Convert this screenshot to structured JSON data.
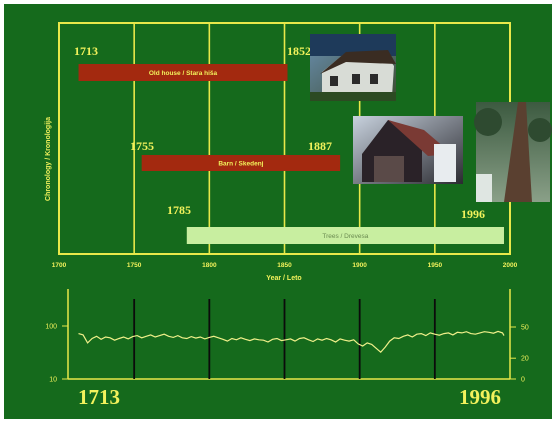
{
  "colors": {
    "background": "#156a1c",
    "frame": "#e8e84a",
    "bar_dark_red": "#a3290f",
    "bar_light_green": "#c8eea0",
    "label_yellow": "#f2f25c",
    "trace": "#f0f08a"
  },
  "chart_data": [
    {
      "type": "bar",
      "orientation": "horizontal",
      "ylabel": "Chronology / Kronologija",
      "xlabel": "Year / Leto",
      "xlim": [
        1700,
        2000
      ],
      "x_ticks": [
        "1700",
        "1750",
        "1800",
        "1850",
        "1900",
        "1950",
        "2000"
      ],
      "grid": true,
      "bars": [
        {
          "label": "Old house / Stara hiša",
          "start": 1713,
          "end": 1852,
          "start_label": "1713",
          "end_label": "1852",
          "color": "#a3290f"
        },
        {
          "label": "Barn / Skedenj",
          "start": 1755,
          "end": 1887,
          "start_label": "1755",
          "end_label": "1887",
          "color": "#a3290f"
        },
        {
          "label": "Trees / Drevesa",
          "start": 1785,
          "end": 1996,
          "start_label": "1785",
          "end_label": "1996",
          "color": "#c8eea0"
        }
      ],
      "photos": [
        "house-photo",
        "barn-photo",
        "tree-photo"
      ]
    },
    {
      "type": "line",
      "xlim": [
        1700,
        2000
      ],
      "y_left_ticks": [
        "10",
        "100"
      ],
      "y_right_ticks": [
        "0",
        "20",
        "50"
      ],
      "y_left_log": true,
      "grid": true,
      "series": [
        {
          "x": [
            1713,
            1716,
            1719,
            1722,
            1725,
            1728,
            1731,
            1734,
            1737,
            1740,
            1743,
            1746,
            1749,
            1752,
            1755,
            1758,
            1761,
            1764,
            1767,
            1770,
            1773,
            1776,
            1779,
            1782,
            1785,
            1788,
            1791,
            1794,
            1797,
            1800,
            1803,
            1806,
            1809,
            1812,
            1815,
            1818,
            1821,
            1824,
            1827,
            1830,
            1833,
            1836,
            1839,
            1842,
            1845,
            1848,
            1851,
            1854,
            1857,
            1860,
            1863,
            1866,
            1869,
            1872,
            1875,
            1878,
            1881,
            1884,
            1887,
            1890,
            1893,
            1896,
            1899,
            1902,
            1905,
            1908,
            1911,
            1914,
            1917,
            1920,
            1923,
            1926,
            1929,
            1932,
            1935,
            1938,
            1941,
            1944,
            1947,
            1950,
            1953,
            1956,
            1959,
            1962,
            1965,
            1968,
            1971,
            1974,
            1977,
            1980,
            1983,
            1986,
            1989,
            1992,
            1995,
            1996
          ],
          "values": [
            72,
            68,
            48,
            58,
            64,
            56,
            62,
            60,
            54,
            58,
            62,
            57,
            63,
            66,
            60,
            64,
            68,
            62,
            66,
            70,
            64,
            61,
            66,
            60,
            58,
            63,
            59,
            62,
            57,
            61,
            64,
            60,
            56,
            52,
            58,
            55,
            60,
            56,
            53,
            57,
            55,
            54,
            50,
            56,
            58,
            53,
            55,
            57,
            52,
            58,
            60,
            55,
            51,
            57,
            54,
            58,
            55,
            50,
            57,
            54,
            52,
            55,
            46,
            42,
            48,
            45,
            38,
            32,
            40,
            52,
            60,
            58,
            64,
            68,
            62,
            70,
            72,
            66,
            74,
            70,
            67,
            72,
            74,
            68,
            76,
            74,
            78,
            72,
            70,
            74,
            78,
            76,
            73,
            79,
            74,
            66
          ]
        }
      ]
    }
  ],
  "footer": {
    "start_year": "1713",
    "end_year": "1996"
  }
}
